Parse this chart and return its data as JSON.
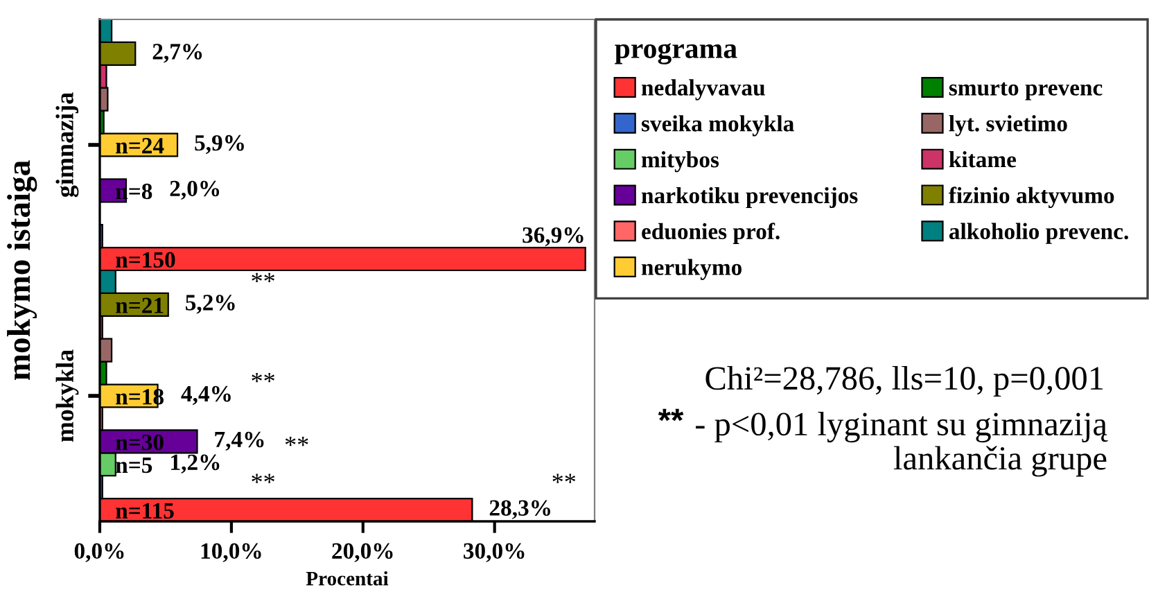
{
  "chart_data": {
    "type": "bar",
    "orientation": "horizontal",
    "categories": [
      "gimnazija",
      "mokykla"
    ],
    "xlabel": "Procentai",
    "ylabel": "mokymo istaiga",
    "legend_title": "programa",
    "xlim": [
      0,
      37.6
    ],
    "xticks": [
      {
        "value": 0,
        "label": "0,0%"
      },
      {
        "value": 10,
        "label": "10,0%"
      },
      {
        "value": 20,
        "label": "20,0%"
      },
      {
        "value": 30,
        "label": "30,0%"
      }
    ],
    "legend": "top right",
    "series": [
      {
        "name": "nedalyvavau",
        "color": "#ff3333",
        "values": [
          36.9,
          28.3
        ],
        "value_labels": [
          [
            "n=150",
            "36,9%"
          ],
          [
            "n=115",
            "28,3%"
          ]
        ]
      },
      {
        "name": "sveika mokykla",
        "color": "#3366cc",
        "values": [
          0.2,
          0.2
        ]
      },
      {
        "name": "mitybos",
        "color": "#66cc66",
        "values": [
          0,
          1.2
        ],
        "value_labels": [
          null,
          [
            "n=5",
            "1,2%"
          ]
        ]
      },
      {
        "name": "narkotiku prevencijos",
        "color": "#660099",
        "values": [
          2.0,
          7.4
        ],
        "value_labels": [
          [
            "n=8",
            "2,0%"
          ],
          [
            "n=30",
            "7,4%"
          ]
        ]
      },
      {
        "name": "eduonies prof.",
        "color": "#ff6666",
        "values": [
          0,
          0.2
        ]
      },
      {
        "name": "nerukymo",
        "color": "#ffcc33",
        "values": [
          5.9,
          4.4
        ],
        "value_labels": [
          [
            "n=24",
            "5,9%"
          ],
          [
            "n=18",
            "4,4%"
          ]
        ]
      },
      {
        "name": "smurto prevenc",
        "color": "#008000",
        "values": [
          0.3,
          0.5
        ]
      },
      {
        "name": "lyt. svietimo",
        "color": "#996666",
        "values": [
          0.6,
          0.9
        ]
      },
      {
        "name": "kitame",
        "color": "#cc3366",
        "values": [
          0.5,
          0.2
        ]
      },
      {
        "name": "fizinio aktyvumo",
        "color": "#808000",
        "values": [
          2.7,
          5.2
        ],
        "value_labels": [
          [
            null,
            "2,7%"
          ],
          [
            "n=21",
            "5,2%"
          ]
        ]
      },
      {
        "name": "alkoholio prevenc.",
        "color": "#008080",
        "values": [
          0.9,
          1.2
        ]
      }
    ],
    "annotations": [
      "**",
      "**",
      "**",
      "**",
      "**",
      "Chi²=28,786, lls=10, p=0,001",
      "**",
      "- p<0,01 lyginant su gimnaziją\nlankančia grupe"
    ]
  }
}
